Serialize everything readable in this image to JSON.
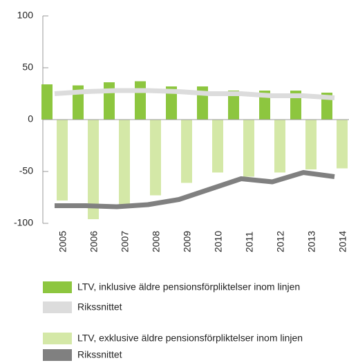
{
  "chart_data": {
    "type": "bar",
    "categories": [
      "2005",
      "2006",
      "2007",
      "2008",
      "2009",
      "2010",
      "2011",
      "2012",
      "2013",
      "2014"
    ],
    "series": [
      {
        "name": "LTV, inklusive äldre pensionsförpliktelser inom linjen",
        "type": "bar",
        "color": "#8dc63f",
        "values": [
          34,
          33,
          36,
          37,
          32,
          32,
          28,
          28,
          28,
          26
        ]
      },
      {
        "name": "Rikssnittet",
        "type": "line",
        "color": "#dcdcdc",
        "values": [
          25,
          27,
          28,
          28,
          27,
          25,
          25,
          23,
          23,
          21
        ]
      },
      {
        "name": "LTV, exklusive äldre pensionsförpliktelser inom linjen",
        "type": "bar",
        "color": "#d4e8a7",
        "values": [
          -78,
          -96,
          -85,
          -73,
          -61,
          -51,
          -55,
          -51,
          -48,
          -47
        ]
      },
      {
        "name": "Rikssnittet",
        "type": "line",
        "color": "#808080",
        "values": [
          -83,
          -83,
          -84,
          -82,
          -77,
          -67,
          -57,
          -60,
          -51,
          -55
        ]
      }
    ],
    "ylim": [
      -100,
      100
    ],
    "yticks": [
      -100,
      -50,
      0,
      50,
      100
    ]
  }
}
